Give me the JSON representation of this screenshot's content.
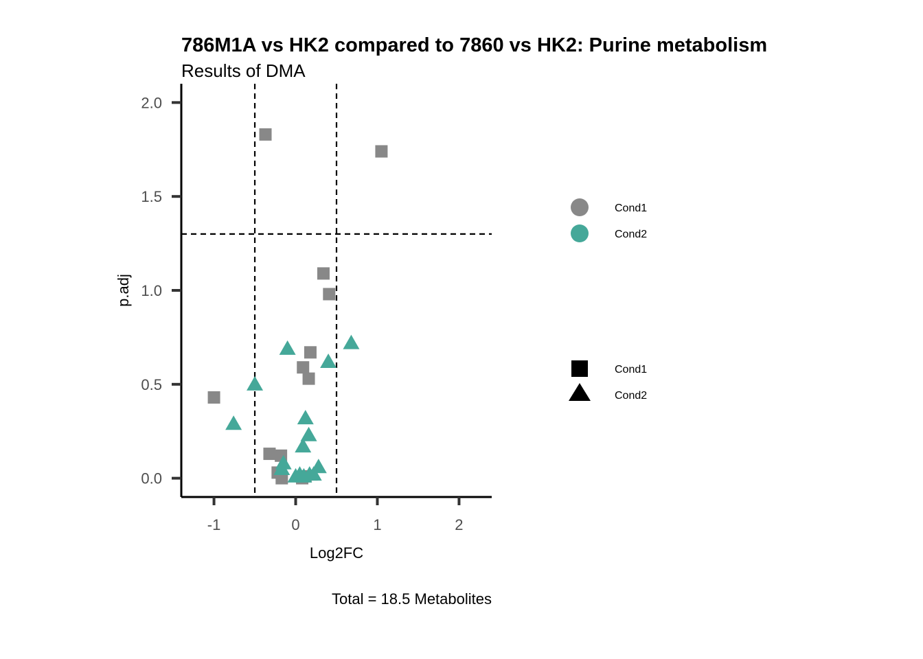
{
  "chart_data": {
    "type": "scatter",
    "title": "786M1A vs HK2 compared to 7860 vs HK2: Purine metabolism",
    "subtitle": "Results of DMA",
    "xlabel": "Log2FC",
    "ylabel": "p.adj",
    "caption": "Total = 18.5 Metabolites",
    "xlim": [
      -1.4,
      2.4
    ],
    "ylim": [
      -0.1,
      2.1
    ],
    "x_ticks": [
      -1,
      0,
      1,
      2
    ],
    "x_tick_labels": [
      "-1",
      "0",
      "1",
      "2"
    ],
    "y_ticks": [
      0.0,
      0.5,
      1.0,
      1.5,
      2.0
    ],
    "y_tick_labels": [
      "0.0",
      "0.5",
      "1.0",
      "1.5",
      "2.0"
    ],
    "reference_lines": {
      "vertical": [
        -0.5,
        0.5
      ],
      "horizontal": [
        1.3
      ]
    },
    "grid": false,
    "colors": {
      "Cond1": "#888888",
      "Cond2": "#45a899"
    },
    "legend_color": {
      "placement": "right",
      "entries": [
        "Cond1",
        "Cond2"
      ]
    },
    "legend_shape": {
      "placement": "right",
      "entries": [
        {
          "label": "Cond1",
          "shape": "square"
        },
        {
          "label": "Cond2",
          "shape": "triangle"
        }
      ]
    },
    "series": [
      {
        "color_group": "Cond1",
        "shape": "square",
        "points": [
          {
            "x": -0.37,
            "y": 1.83
          },
          {
            "x": 1.05,
            "y": 1.74
          },
          {
            "x": 0.34,
            "y": 1.09
          },
          {
            "x": 0.41,
            "y": 0.98
          },
          {
            "x": 0.18,
            "y": 0.67
          },
          {
            "x": 0.09,
            "y": 0.59
          },
          {
            "x": 0.16,
            "y": 0.53
          },
          {
            "x": -1.0,
            "y": 0.43
          },
          {
            "x": -0.32,
            "y": 0.13
          },
          {
            "x": -0.18,
            "y": 0.12
          },
          {
            "x": -0.22,
            "y": 0.03
          },
          {
            "x": -0.17,
            "y": 0.0
          },
          {
            "x": 0.08,
            "y": 0.0
          },
          {
            "x": 0.12,
            "y": 0.01
          }
        ]
      },
      {
        "color_group": "Cond2",
        "shape": "triangle",
        "points": [
          {
            "x": 0.68,
            "y": 0.72
          },
          {
            "x": -0.1,
            "y": 0.69
          },
          {
            "x": 0.4,
            "y": 0.62
          },
          {
            "x": -0.5,
            "y": 0.5
          },
          {
            "x": 0.12,
            "y": 0.32
          },
          {
            "x": -0.76,
            "y": 0.29
          },
          {
            "x": 0.16,
            "y": 0.23
          },
          {
            "x": 0.09,
            "y": 0.17
          },
          {
            "x": -0.15,
            "y": 0.08
          },
          {
            "x": -0.17,
            "y": 0.05
          },
          {
            "x": 0.28,
            "y": 0.06
          },
          {
            "x": 0.0,
            "y": 0.01
          },
          {
            "x": 0.05,
            "y": 0.02
          },
          {
            "x": 0.1,
            "y": 0.01
          },
          {
            "x": 0.17,
            "y": 0.02
          },
          {
            "x": 0.22,
            "y": 0.02
          }
        ]
      }
    ]
  }
}
